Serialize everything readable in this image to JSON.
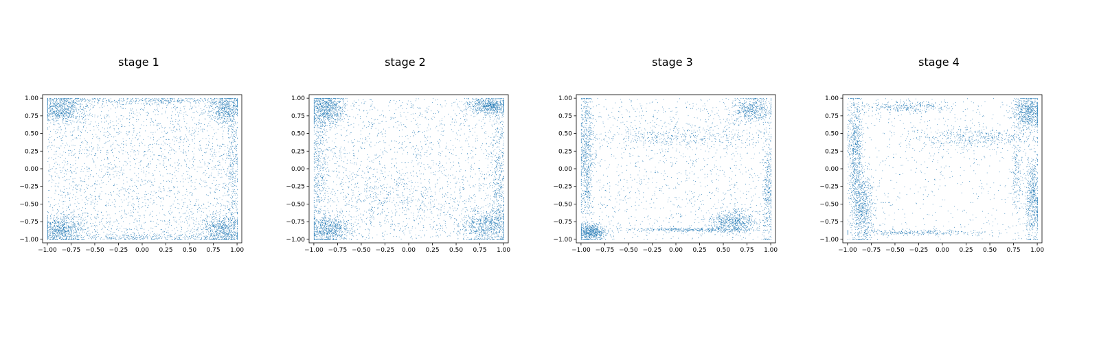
{
  "figure": {
    "background": "#ffffff"
  },
  "chart_data": [
    {
      "type": "scatter",
      "title": "stage 1",
      "xlim": [
        -1.05,
        1.05
      ],
      "ylim": [
        -1.05,
        1.05
      ],
      "xticks": [
        -1.0,
        -0.75,
        -0.5,
        -0.25,
        0.0,
        0.25,
        0.5,
        0.75,
        1.0
      ],
      "yticks": [
        -1.0,
        -0.75,
        -0.5,
        -0.25,
        0.0,
        0.25,
        0.5,
        0.75,
        1.0
      ],
      "xtick_labels": [
        "−1.00",
        "−0.75",
        "−0.50",
        "−0.25",
        "0.00",
        "0.25",
        "0.50",
        "0.75",
        "1.00"
      ],
      "ytick_labels": [
        "−1.00",
        "−0.75",
        "−0.50",
        "−0.25",
        "0.00",
        "0.25",
        "0.50",
        "0.75",
        "1.00"
      ],
      "color": "#1f77b4",
      "grid": false,
      "distribution": {
        "uniform_points": 2600,
        "clusters": [
          {
            "cx": -0.85,
            "cy": 0.85,
            "sx": 0.12,
            "sy": 0.1,
            "n": 700
          },
          {
            "cx": 0.88,
            "cy": 0.85,
            "sx": 0.08,
            "sy": 0.1,
            "n": 500
          },
          {
            "cx": -0.85,
            "cy": -0.85,
            "sx": 0.12,
            "sy": 0.1,
            "n": 700
          },
          {
            "cx": 0.85,
            "cy": -0.85,
            "sx": 0.12,
            "sy": 0.1,
            "n": 600
          },
          {
            "cx": 0.0,
            "cy": 0.97,
            "sx": 0.6,
            "sy": 0.03,
            "n": 400
          },
          {
            "cx": 0.0,
            "cy": -0.97,
            "sx": 0.6,
            "sy": 0.03,
            "n": 400
          },
          {
            "cx": 0.95,
            "cy": 0.0,
            "sx": 0.04,
            "sy": 0.5,
            "n": 300
          }
        ]
      }
    },
    {
      "type": "scatter",
      "title": "stage 2",
      "xlim": [
        -1.05,
        1.05
      ],
      "ylim": [
        -1.05,
        1.05
      ],
      "xticks": [
        -1.0,
        -0.75,
        -0.5,
        -0.25,
        0.0,
        0.25,
        0.5,
        0.75,
        1.0
      ],
      "yticks": [
        -1.0,
        -0.75,
        -0.5,
        -0.25,
        0.0,
        0.25,
        0.5,
        0.75,
        1.0
      ],
      "xtick_labels": [
        "−1.00",
        "−0.75",
        "−0.50",
        "−0.25",
        "0.00",
        "0.25",
        "0.50",
        "0.75",
        "1.00"
      ],
      "ytick_labels": [
        "−1.00",
        "−0.75",
        "−0.50",
        "−0.25",
        "0.00",
        "0.25",
        "0.50",
        "0.75",
        "1.00"
      ],
      "color": "#1f77b4",
      "grid": false,
      "distribution": {
        "uniform_points": 2000,
        "clusters": [
          {
            "cx": -0.88,
            "cy": 0.85,
            "sx": 0.1,
            "sy": 0.12,
            "n": 800
          },
          {
            "cx": 0.85,
            "cy": 0.9,
            "sx": 0.12,
            "sy": 0.06,
            "n": 700
          },
          {
            "cx": -0.85,
            "cy": -0.85,
            "sx": 0.12,
            "sy": 0.1,
            "n": 700
          },
          {
            "cx": 0.8,
            "cy": -0.8,
            "sx": 0.14,
            "sy": 0.12,
            "n": 700
          },
          {
            "cx": -0.95,
            "cy": 0.0,
            "sx": 0.04,
            "sy": 0.5,
            "n": 400
          },
          {
            "cx": 0.95,
            "cy": -0.2,
            "sx": 0.04,
            "sy": 0.5,
            "n": 400
          },
          {
            "cx": -0.2,
            "cy": -0.4,
            "sx": 0.35,
            "sy": 0.2,
            "n": 300
          }
        ]
      }
    },
    {
      "type": "scatter",
      "title": "stage 3",
      "xlim": [
        -1.05,
        1.05
      ],
      "ylim": [
        -1.05,
        1.05
      ],
      "xticks": [
        -1.0,
        -0.75,
        -0.5,
        -0.25,
        0.0,
        0.25,
        0.5,
        0.75,
        1.0
      ],
      "yticks": [
        -1.0,
        -0.75,
        -0.5,
        -0.25,
        0.0,
        0.25,
        0.5,
        0.75,
        1.0
      ],
      "xtick_labels": [
        "−1.00",
        "−0.75",
        "−0.50",
        "−0.25",
        "0.00",
        "0.25",
        "0.50",
        "0.75",
        "1.00"
      ],
      "ytick_labels": [
        "−1.00",
        "−0.75",
        "−0.50",
        "−0.25",
        "0.00",
        "0.25",
        "0.50",
        "0.75",
        "1.00"
      ],
      "color": "#1f77b4",
      "grid": false,
      "distribution": {
        "uniform_points": 1400,
        "clusters": [
          {
            "cx": -0.95,
            "cy": 0.2,
            "sx": 0.04,
            "sy": 0.5,
            "n": 700
          },
          {
            "cx": -0.9,
            "cy": -0.9,
            "sx": 0.08,
            "sy": 0.06,
            "n": 600
          },
          {
            "cx": 0.6,
            "cy": -0.75,
            "sx": 0.12,
            "sy": 0.08,
            "n": 600
          },
          {
            "cx": 0.8,
            "cy": 0.85,
            "sx": 0.12,
            "sy": 0.1,
            "n": 500
          },
          {
            "cx": 0.1,
            "cy": -0.86,
            "sx": 0.35,
            "sy": 0.015,
            "n": 350
          },
          {
            "cx": 0.0,
            "cy": 0.45,
            "sx": 0.45,
            "sy": 0.08,
            "n": 400
          },
          {
            "cx": 0.97,
            "cy": -0.3,
            "sx": 0.03,
            "sy": 0.4,
            "n": 350
          }
        ]
      }
    },
    {
      "type": "scatter",
      "title": "stage 4",
      "xlim": [
        -1.05,
        1.05
      ],
      "ylim": [
        -1.05,
        1.05
      ],
      "xticks": [
        -1.0,
        -0.75,
        -0.5,
        -0.25,
        0.0,
        0.25,
        0.5,
        0.75,
        1.0
      ],
      "yticks": [
        -1.0,
        -0.75,
        -0.5,
        -0.25,
        0.0,
        0.25,
        0.5,
        0.75,
        1.0
      ],
      "xtick_labels": [
        "−1.00",
        "−0.75",
        "−0.50",
        "−0.25",
        "0.00",
        "0.25",
        "0.50",
        "0.75",
        "1.00"
      ],
      "ytick_labels": [
        "−1.00",
        "−0.75",
        "−0.50",
        "−0.25",
        "0.00",
        "0.25",
        "0.50",
        "0.75",
        "1.00"
      ],
      "color": "#1f77b4",
      "grid": false,
      "distribution": {
        "uniform_points": 700,
        "clusters": [
          {
            "cx": -0.92,
            "cy": 0.3,
            "sx": 0.04,
            "sy": 0.4,
            "n": 700
          },
          {
            "cx": -0.85,
            "cy": -0.55,
            "sx": 0.06,
            "sy": 0.25,
            "n": 700
          },
          {
            "cx": 0.9,
            "cy": 0.8,
            "sx": 0.08,
            "sy": 0.12,
            "n": 700
          },
          {
            "cx": 0.95,
            "cy": -0.4,
            "sx": 0.04,
            "sy": 0.3,
            "n": 600
          },
          {
            "cx": 0.3,
            "cy": 0.45,
            "sx": 0.35,
            "sy": 0.08,
            "n": 450
          },
          {
            "cx": -0.4,
            "cy": 0.88,
            "sx": 0.25,
            "sy": 0.04,
            "n": 300
          },
          {
            "cx": -0.3,
            "cy": -0.9,
            "sx": 0.4,
            "sy": 0.02,
            "n": 300
          },
          {
            "cx": 0.78,
            "cy": 0.0,
            "sx": 0.03,
            "sy": 0.35,
            "n": 200
          }
        ]
      }
    }
  ]
}
